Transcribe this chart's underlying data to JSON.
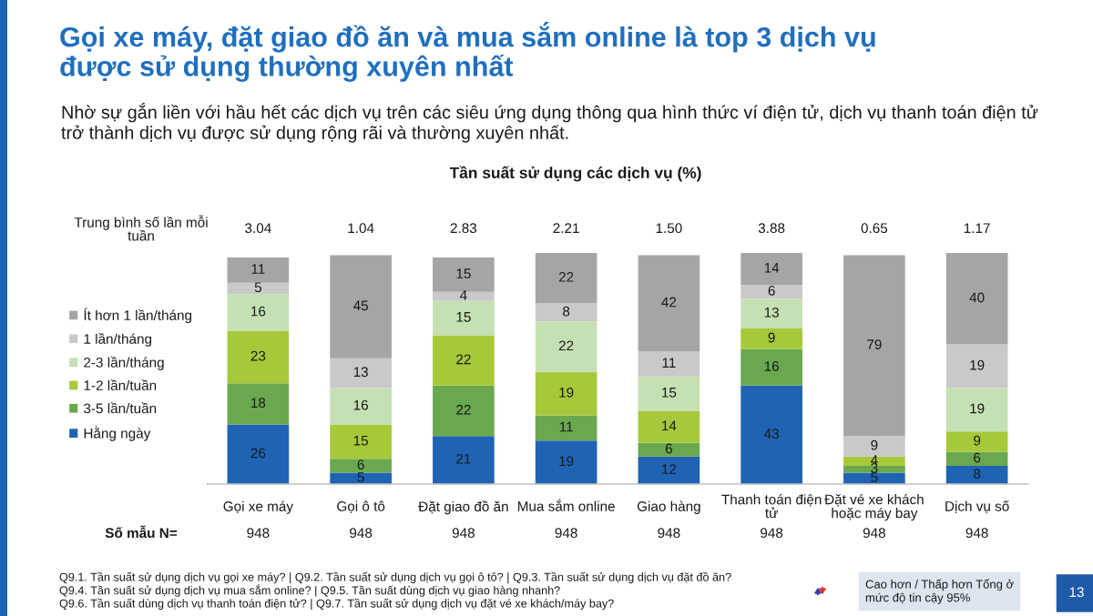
{
  "chart_data": {
    "type": "bar",
    "stacked": true,
    "title": "Gọi xe máy, đặt giao đồ ăn và mua sắm online là top 3 dịch vụ\nđược sử dụng thường xuyên nhất",
    "subtitle": "Nhờ sự gắn liền với hầu hết các dịch vụ trên các siêu ứng dụng thông qua hình thức ví điện tử, dịch vụ thanh toán điện tử\ntrở thành dịch vụ được sử dụng rộng rãi và thường xuyên nhất.",
    "categories": [
      "Gọi xe máy",
      "Gọi ô tô",
      "Đặt giao đồ ăn",
      "Mua sắm online",
      "Giao hàng",
      "Thanh toán điện\ntử",
      "Đặt vé xe khách\nhoặc máy bay",
      "Dịch vụ số"
    ],
    "series": [
      {
        "name": "Hằng ngày",
        "color": "#1f63b4",
        "values": [
          26,
          5,
          21,
          19,
          12,
          43,
          5,
          8
        ]
      },
      {
        "name": "3-5 lần/tuần",
        "color": "#6aa84f",
        "values": [
          18,
          6,
          22,
          11,
          6,
          16,
          3,
          6
        ]
      },
      {
        "name": "1-2 lần/tuần",
        "color": "#a6c93a",
        "values": [
          23,
          15,
          22,
          19,
          14,
          9,
          4,
          9
        ]
      },
      {
        "name": "2-3 lần/tháng",
        "color": "#c5e0b3",
        "values": [
          16,
          16,
          15,
          22,
          15,
          13,
          null,
          19
        ]
      },
      {
        "name": "1 lần/tháng",
        "color": "#c9c9c9",
        "values": [
          5,
          13,
          4,
          8,
          11,
          6,
          9,
          19
        ]
      },
      {
        "name": "Ít hơn 1 lần/tháng",
        "color": "#a5a5a5",
        "values": [
          11,
          45,
          15,
          22,
          42,
          14,
          79,
          40
        ]
      }
    ],
    "data_labels": true,
    "legend": "left",
    "tick_labels": "x",
    "annotations": [
      "Tần suất sử dụng các dịch vụ (%)",
      "Trung bình số lần mỗi\ntuần",
      "3.04",
      "1.04",
      "2.83",
      "2.21",
      "1.50",
      "3.88",
      "0.65",
      "1.17",
      "Số mẫu N=",
      "948",
      "948",
      "948",
      "948",
      "948",
      "948",
      "948",
      "948",
      "Q9.1. Tần suất sử dụng dịch vụ gọi xe máy? | Q9.2. Tần suất sử dụng dịch vụ gọi ô tô? | Q9.3. Tần suất sử dụng dịch vụ đặt đồ ăn?",
      "Q9.4. Tần suất sử dụng dịch vụ mua sắm online? | Q9.5. Tần suất dùng dịch vụ giao hàng nhanh?",
      "Q9.6. Tần suất dùng dịch vụ thanh toán điện tử? | Q9.7. Tần suất sử dụng dịch vụ đặt vé xe khách/máy bay?",
      "Cao hơn / Thấp hơn Tổng ở\nmức độ tin cậy 95%",
      "13"
    ]
  }
}
